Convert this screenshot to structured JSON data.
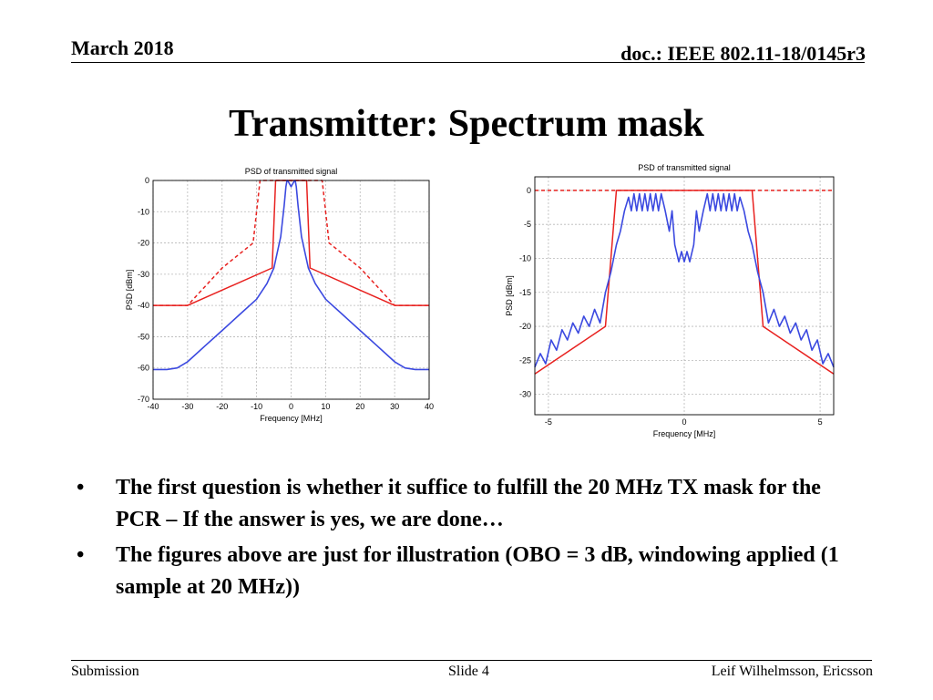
{
  "header": {
    "date": "March 2018",
    "doc": "doc.: IEEE 802.11-18/0145r3"
  },
  "slide_title": "Transmitter: Spectrum mask",
  "bullets": [
    "The first question is whether it suffice to fulfill the 20 MHz TX mask for the PCR – If the answer is yes, we are done…",
    "The figures above are just for illustration (OBO = 3 dB, windowing applied (1 sample at 20 MHz))"
  ],
  "bullet_glyph": "•",
  "footer": {
    "left": "Submission",
    "center": "Slide 4",
    "right": "Leif Wilhelmsson, Ericsson"
  },
  "colors": {
    "mask": "#e8211f",
    "psd": "#3b49e0",
    "grid": "#b8b8b8"
  },
  "chart_data": [
    {
      "type": "line",
      "title": "PSD of transmitted signal",
      "xlabel": "Frequency [MHz]",
      "ylabel": "PSD [dBm]",
      "xlim": [
        -40,
        40
      ],
      "ylim": [
        -70,
        0
      ],
      "xticks": [
        -40,
        -30,
        -20,
        -10,
        0,
        10,
        20,
        30,
        40
      ],
      "yticks": [
        0,
        -10,
        -20,
        -30,
        -40,
        -50,
        -60,
        -70
      ],
      "grid": true,
      "series": [
        {
          "style": "solid",
          "color": "#e8211f",
          "x": [
            -40,
            -30,
            -5.5,
            -4.5,
            -4.5,
            4.5,
            4.5,
            5.5,
            30,
            40
          ],
          "y": [
            -40,
            -40,
            -28,
            0,
            0,
            0,
            0,
            -28,
            -40,
            -40
          ]
        },
        {
          "style": "dashed",
          "color": "#e8211f",
          "x": [
            -40,
            -30,
            -20,
            -11,
            -9,
            9,
            11,
            20,
            30,
            40
          ],
          "y": [
            -40,
            -40,
            -28,
            -20,
            0,
            0,
            -20,
            -28,
            -40,
            -40
          ]
        },
        {
          "style": "solid",
          "color": "#3b49e0",
          "x": [
            -40,
            -36,
            -33,
            -30,
            -25,
            -20,
            -15,
            -10,
            -7,
            -5,
            -3,
            -2,
            -1.5,
            -1.2,
            -1,
            0,
            1,
            1.2,
            1.5,
            2,
            3,
            5,
            7,
            10,
            15,
            20,
            25,
            30,
            33,
            36,
            40
          ],
          "y": [
            -60.5,
            -60.5,
            -60,
            -58,
            -53,
            -48,
            -43,
            -38,
            -33,
            -28,
            -18,
            -8,
            -2,
            0,
            0,
            -2,
            0,
            0,
            -2,
            -8,
            -18,
            -28,
            -33,
            -38,
            -43,
            -48,
            -53,
            -58,
            -60,
            -60.5,
            -60.5
          ]
        }
      ]
    },
    {
      "type": "line",
      "title": "PSD of transmitted signal",
      "xlabel": "Frequency [MHz]",
      "ylabel": "PSD [dBm]",
      "xlim": [
        -5.5,
        5.5
      ],
      "ylim": [
        -33,
        2
      ],
      "xticks": [
        -5,
        0,
        5
      ],
      "yticks": [
        0,
        -5,
        -10,
        -15,
        -20,
        -25,
        -30
      ],
      "grid": true,
      "series": [
        {
          "style": "solid",
          "color": "#e8211f",
          "x": [
            -5.5,
            -2.9,
            -2.5,
            2.5,
            2.9,
            5.5
          ],
          "y": [
            -27,
            -20,
            0,
            0,
            -20,
            -27
          ]
        },
        {
          "style": "dashed",
          "color": "#e8211f",
          "x": [
            -5.5,
            5.5
          ],
          "y": [
            0,
            0
          ]
        },
        {
          "style": "solid",
          "color": "#3b49e0",
          "x": [
            -5.5,
            -5.3,
            -5.1,
            -4.9,
            -4.7,
            -4.5,
            -4.3,
            -4.1,
            -3.9,
            -3.7,
            -3.5,
            -3.3,
            -3.1,
            -2.9,
            -2.7,
            -2.5,
            -2.35,
            -2.2,
            -2.05,
            -1.95,
            -1.85,
            -1.75,
            -1.65,
            -1.55,
            -1.45,
            -1.35,
            -1.25,
            -1.15,
            -1.05,
            -0.95,
            -0.85,
            -0.7,
            -0.55,
            -0.45,
            -0.35,
            -0.2,
            -0.1,
            0,
            0.1,
            0.2,
            0.35,
            0.45,
            0.55,
            0.7,
            0.85,
            0.95,
            1.05,
            1.15,
            1.25,
            1.35,
            1.45,
            1.55,
            1.65,
            1.75,
            1.85,
            1.95,
            2.05,
            2.2,
            2.35,
            2.5,
            2.7,
            2.9,
            3.1,
            3.3,
            3.5,
            3.7,
            3.9,
            4.1,
            4.3,
            4.5,
            4.7,
            4.9,
            5.1,
            5.3,
            5.5
          ],
          "y": [
            -26,
            -24,
            -25.5,
            -22,
            -23.5,
            -20.5,
            -22,
            -19.5,
            -21,
            -18.5,
            -20,
            -17.5,
            -19.5,
            -15,
            -12,
            -8,
            -6,
            -3,
            -1,
            -3,
            -0.5,
            -3,
            -0.5,
            -3,
            -0.5,
            -3,
            -0.5,
            -3,
            -0.5,
            -3,
            -0.5,
            -3,
            -6,
            -3,
            -8,
            -10.5,
            -9,
            -10.5,
            -9,
            -10.5,
            -8,
            -3,
            -6,
            -3,
            -0.5,
            -3,
            -0.5,
            -3,
            -0.5,
            -3,
            -0.5,
            -3,
            -0.5,
            -3,
            -0.5,
            -3,
            -1,
            -3,
            -6,
            -8,
            -12,
            -15,
            -19.5,
            -17.5,
            -20,
            -18.5,
            -21,
            -19.5,
            -22,
            -20.5,
            -23.5,
            -22,
            -25.5,
            -24,
            -26
          ]
        }
      ]
    }
  ]
}
